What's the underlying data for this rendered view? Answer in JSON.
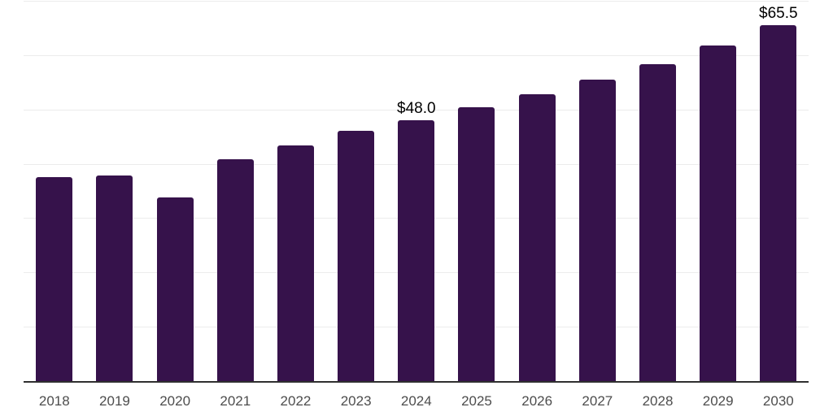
{
  "chart_data": {
    "type": "bar",
    "title": "",
    "xlabel": "",
    "ylabel": "",
    "categories": [
      "2018",
      "2019",
      "2020",
      "2021",
      "2022",
      "2023",
      "2024",
      "2025",
      "2026",
      "2027",
      "2028",
      "2029",
      "2030"
    ],
    "values": [
      37.5,
      37.8,
      33.8,
      40.8,
      43.4,
      46.0,
      48.0,
      50.4,
      52.8,
      55.5,
      58.4,
      61.8,
      65.5
    ],
    "bar_labels": {
      "2024": "$48.0",
      "2030": "$65.5"
    },
    "ylim": [
      0,
      70
    ],
    "gridline_step": 10,
    "grid": true,
    "legend": false,
    "colors": {
      "bar": "#36124B",
      "gridline": "#ececec",
      "axis": "#2f2f2f",
      "tick_label": "#4d4d4d",
      "value_label": "#000000",
      "background": "#ffffff"
    }
  }
}
